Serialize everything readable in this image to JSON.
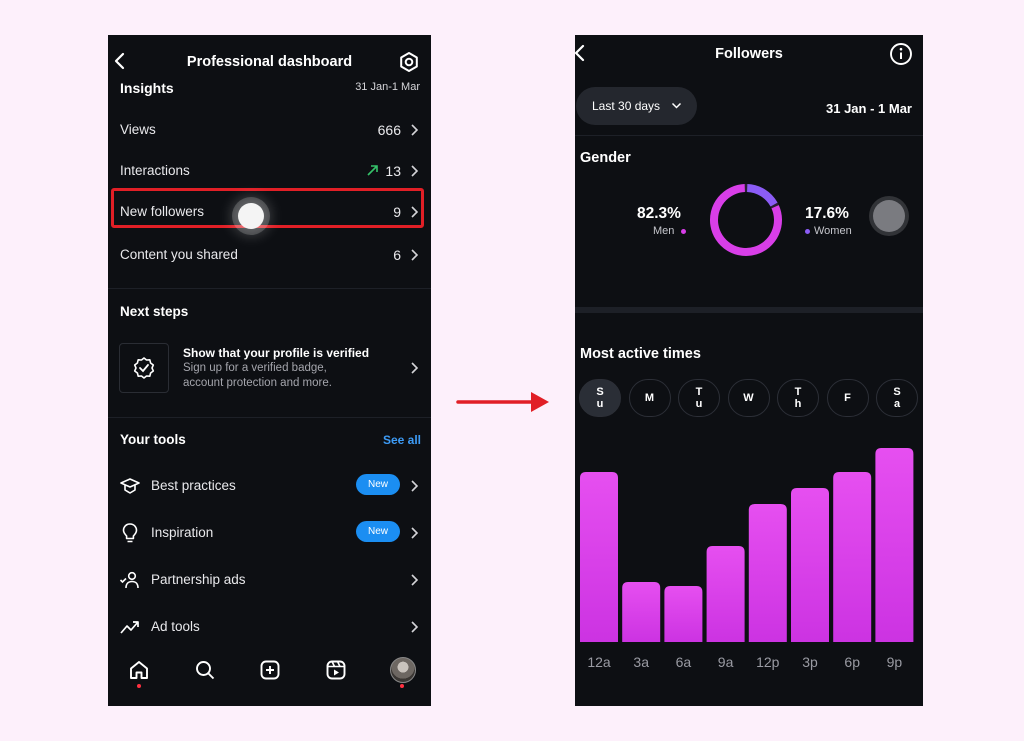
{
  "left_screen": {
    "header": {
      "title": "Professional dashboard"
    },
    "insights": {
      "title": "Insights",
      "date_range": "31 Jan-1 Mar",
      "rows": [
        {
          "label": "Views",
          "value": "666"
        },
        {
          "label": "Interactions",
          "value": "13",
          "trend": "up"
        },
        {
          "label": "New followers",
          "value": "9"
        },
        {
          "label": "Content you shared",
          "value": "6"
        }
      ]
    },
    "next_steps": {
      "title": "Next steps",
      "card_title": "Show that your profile is verified",
      "card_desc_line1": "Sign up for a verified badge,",
      "card_desc_line2": "account protection and more."
    },
    "tools": {
      "title": "Your tools",
      "see_all": "See all",
      "items": [
        {
          "label": "Best practices",
          "badge": "New",
          "icon": "graduation-cap-icon"
        },
        {
          "label": "Inspiration",
          "badge": "New",
          "icon": "lightbulb-icon"
        },
        {
          "label": "Partnership ads",
          "badge": "",
          "icon": "handshake-user-icon"
        },
        {
          "label": "Ad tools",
          "badge": "",
          "icon": "trending-up-icon"
        }
      ]
    },
    "bottom_nav": [
      "home-icon",
      "search-icon",
      "create-icon",
      "reels-icon",
      "profile-avatar"
    ]
  },
  "right_screen": {
    "header": {
      "title": "Followers"
    },
    "filter": {
      "label": "Last 30 days"
    },
    "date_range": "31 Jan - 1 Mar",
    "gender": {
      "title": "Gender",
      "men_pct": "82.3%",
      "men_label": "Men",
      "women_pct": "17.6%",
      "women_label": "Women",
      "men_fraction": 0.823,
      "women_fraction": 0.176
    },
    "active_times": {
      "title": "Most active times",
      "days": [
        {
          "l1": "S",
          "l2": "u",
          "selected": true
        },
        {
          "l1": "M",
          "l2": "",
          "selected": false
        },
        {
          "l1": "T",
          "l2": "u",
          "selected": false
        },
        {
          "l1": "W",
          "l2": "",
          "selected": false
        },
        {
          "l1": "T",
          "l2": "h",
          "selected": false
        },
        {
          "l1": "F",
          "l2": "",
          "selected": false
        },
        {
          "l1": "S",
          "l2": "a",
          "selected": false
        }
      ]
    }
  },
  "colors": {
    "accent_pink": "#d83ee8",
    "accent_purple": "#8b5cf6",
    "badge_blue": "#1b8ef2",
    "highlight_red": "#e11f26",
    "trend_green": "#35c26a"
  },
  "chart_data": {
    "type": "bar",
    "categories": [
      "12a",
      "3a",
      "6a",
      "9a",
      "12p",
      "3p",
      "6p",
      "9p"
    ],
    "values": [
      85,
      30,
      28,
      48,
      69,
      77,
      85,
      97
    ],
    "ylim": [
      0,
      100
    ],
    "title": "",
    "xlabel": "",
    "ylabel": "",
    "grid": false
  }
}
